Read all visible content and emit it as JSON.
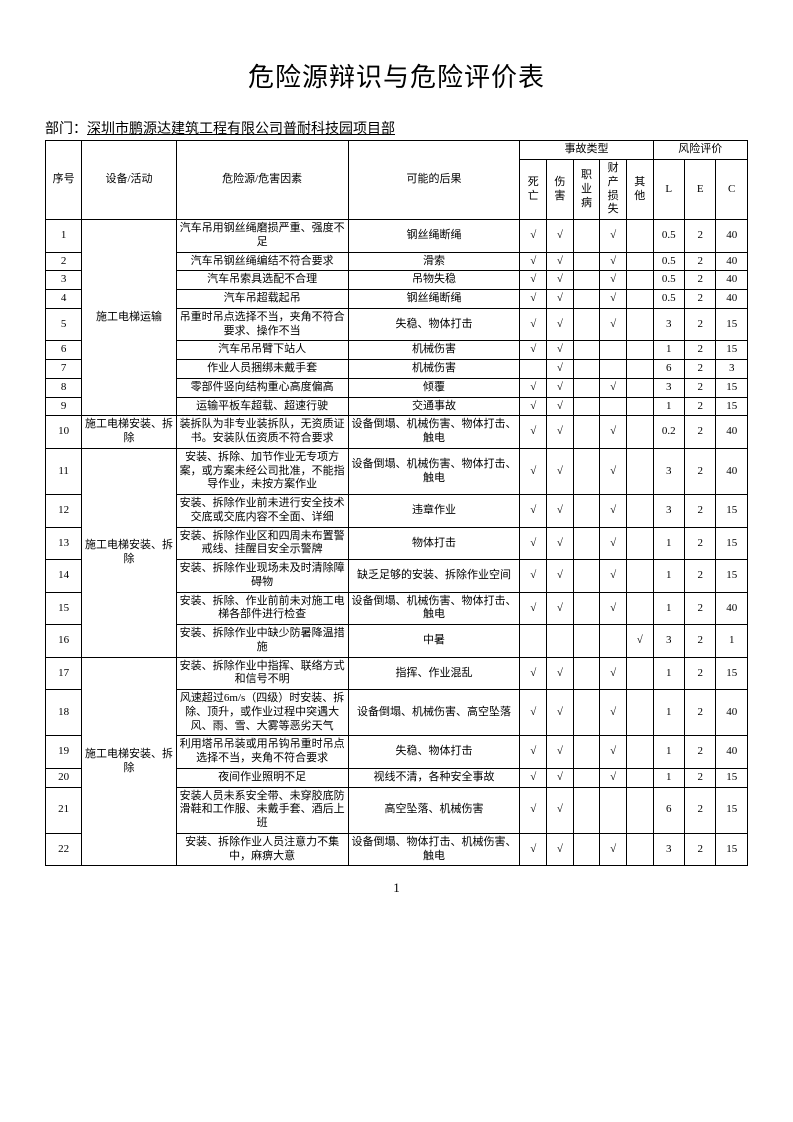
{
  "title": "危险源辩识与危险评价表",
  "dept_label": "部门：",
  "dept_value": "深圳市鹏源达建筑工程有限公司普耐科技园项目部",
  "page_number": "1",
  "headers": {
    "seq": "序号",
    "activity": "设备/活动",
    "hazard": "危险源/危害因素",
    "consequence": "可能的后果",
    "accident_group": "事故类型",
    "risk_group": "风险评价",
    "acc": [
      "死亡",
      "伤害",
      "职业病",
      "财产损失",
      "其他"
    ],
    "risk": [
      "L",
      "E",
      "C"
    ]
  },
  "groups": [
    {
      "activity": "施工电梯运输",
      "rows": [
        {
          "seq": "1",
          "hazard": "汽车吊用钢丝绳磨损严重、强度不足",
          "consequence": "钢丝绳断绳",
          "acc": [
            "√",
            "√",
            "",
            "√",
            ""
          ],
          "risk": [
            "0.5",
            "2",
            "40"
          ]
        },
        {
          "seq": "2",
          "hazard": "汽车吊钢丝绳编结不符合要求",
          "consequence": "滑索",
          "acc": [
            "√",
            "√",
            "",
            "√",
            ""
          ],
          "risk": [
            "0.5",
            "2",
            "40"
          ]
        },
        {
          "seq": "3",
          "hazard": "汽车吊索具选配不合理",
          "consequence": "吊物失稳",
          "acc": [
            "√",
            "√",
            "",
            "√",
            ""
          ],
          "risk": [
            "0.5",
            "2",
            "40"
          ]
        },
        {
          "seq": "4",
          "hazard": "汽车吊超载起吊",
          "consequence": "钢丝绳断绳",
          "acc": [
            "√",
            "√",
            "",
            "√",
            ""
          ],
          "risk": [
            "0.5",
            "2",
            "40"
          ]
        },
        {
          "seq": "5",
          "hazard": "吊重时吊点选择不当，夹角不符合要求、操作不当",
          "consequence": "失稳、物体打击",
          "acc": [
            "√",
            "√",
            "",
            "√",
            ""
          ],
          "risk": [
            "3",
            "2",
            "15"
          ]
        },
        {
          "seq": "6",
          "hazard": "汽车吊吊臂下站人",
          "consequence": "机械伤害",
          "acc": [
            "√",
            "√",
            "",
            "",
            ""
          ],
          "risk": [
            "1",
            "2",
            "15"
          ]
        },
        {
          "seq": "7",
          "hazard": "作业人员捆绑未戴手套",
          "consequence": "机械伤害",
          "acc": [
            "",
            "√",
            "",
            "",
            ""
          ],
          "risk": [
            "6",
            "2",
            "3"
          ]
        },
        {
          "seq": "8",
          "hazard": "零部件竖向结构重心高度偏高",
          "consequence": "倾覆",
          "acc": [
            "√",
            "√",
            "",
            "√",
            ""
          ],
          "risk": [
            "3",
            "2",
            "15"
          ]
        },
        {
          "seq": "9",
          "hazard": "运输平板车超载、超速行驶",
          "consequence": "交通事故",
          "acc": [
            "√",
            "√",
            "",
            "",
            ""
          ],
          "risk": [
            "1",
            "2",
            "15"
          ]
        }
      ]
    },
    {
      "activity": "施工电梯安装、拆除",
      "rows": [
        {
          "seq": "10",
          "hazard": "装拆队为非专业装拆队，无资质证书。安装队伍资质不符合要求",
          "consequence": "设备倒塌、机械伤害、物体打击、触电",
          "acc": [
            "√",
            "√",
            "",
            "√",
            ""
          ],
          "risk": [
            "0.2",
            "2",
            "40"
          ]
        }
      ]
    },
    {
      "activity": "施工电梯安装、拆除",
      "rows": [
        {
          "seq": "11",
          "hazard": "安装、拆除、加节作业无专项方案，或方案未经公司批准，不能指导作业，未按方案作业",
          "consequence": "设备倒塌、机械伤害、物体打击、触电",
          "acc": [
            "√",
            "√",
            "",
            "√",
            ""
          ],
          "risk": [
            "3",
            "2",
            "40"
          ]
        },
        {
          "seq": "12",
          "hazard": "安装、拆除作业前未进行安全技术交底或交底内容不全面、详细",
          "consequence": "违章作业",
          "acc": [
            "√",
            "√",
            "",
            "√",
            ""
          ],
          "risk": [
            "3",
            "2",
            "15"
          ]
        },
        {
          "seq": "13",
          "hazard": "安装、拆除作业区和四周未布置警戒线、挂醒目安全示警牌",
          "consequence": "物体打击",
          "acc": [
            "√",
            "√",
            "",
            "√",
            ""
          ],
          "risk": [
            "1",
            "2",
            "15"
          ]
        },
        {
          "seq": "14",
          "hazard": "安装、拆除作业现场未及时清除障碍物",
          "consequence": "缺乏足够的安装、拆除作业空间",
          "acc": [
            "√",
            "√",
            "",
            "√",
            ""
          ],
          "risk": [
            "1",
            "2",
            "15"
          ]
        },
        {
          "seq": "15",
          "hazard": "安装、拆除、作业前前未对施工电梯各部件进行检查",
          "consequence": "设备倒塌、机械伤害、物体打击、触电",
          "acc": [
            "√",
            "√",
            "",
            "√",
            ""
          ],
          "risk": [
            "1",
            "2",
            "40"
          ]
        },
        {
          "seq": "16",
          "hazard": "安装、拆除作业中缺少防暑降温措施",
          "consequence": "中暑",
          "acc": [
            "",
            "",
            "",
            "",
            "√"
          ],
          "risk": [
            "3",
            "2",
            "1"
          ]
        }
      ]
    },
    {
      "activity": "施工电梯安装、拆除",
      "rows": [
        {
          "seq": "17",
          "hazard": "安装、拆除作业中指挥、联络方式和信号不明",
          "consequence": "指挥、作业混乱",
          "acc": [
            "√",
            "√",
            "",
            "√",
            ""
          ],
          "risk": [
            "1",
            "2",
            "15"
          ]
        },
        {
          "seq": "18",
          "hazard": "风速超过6m/s（四级）时安装、拆除、顶升，或作业过程中突遇大风、雨、雪、大雾等恶劣天气",
          "consequence": "设备倒塌、机械伤害、高空坠落",
          "acc": [
            "√",
            "√",
            "",
            "√",
            ""
          ],
          "risk": [
            "1",
            "2",
            "40"
          ]
        },
        {
          "seq": "19",
          "hazard": "利用塔吊吊装或用吊钩吊重时吊点选择不当，夹角不符合要求",
          "consequence": "失稳、物体打击",
          "acc": [
            "√",
            "√",
            "",
            "√",
            ""
          ],
          "risk": [
            "1",
            "2",
            "40"
          ]
        },
        {
          "seq": "20",
          "hazard": "夜间作业照明不足",
          "consequence": "视线不清，各种安全事故",
          "acc": [
            "√",
            "√",
            "",
            "√",
            ""
          ],
          "risk": [
            "1",
            "2",
            "15"
          ]
        },
        {
          "seq": "21",
          "hazard": "安装人员未系安全带、未穿胶底防滑鞋和工作服、未戴手套、酒后上班",
          "consequence": "高空坠落、机械伤害",
          "acc": [
            "√",
            "√",
            "",
            "",
            ""
          ],
          "risk": [
            "6",
            "2",
            "15"
          ]
        },
        {
          "seq": "22",
          "hazard": "安装、拆除作业人员注意力不集中，麻痹大意",
          "consequence": "设备倒塌、物体打击、机械伤害、触电",
          "acc": [
            "√",
            "√",
            "",
            "√",
            ""
          ],
          "risk": [
            "3",
            "2",
            "15"
          ]
        }
      ]
    }
  ]
}
